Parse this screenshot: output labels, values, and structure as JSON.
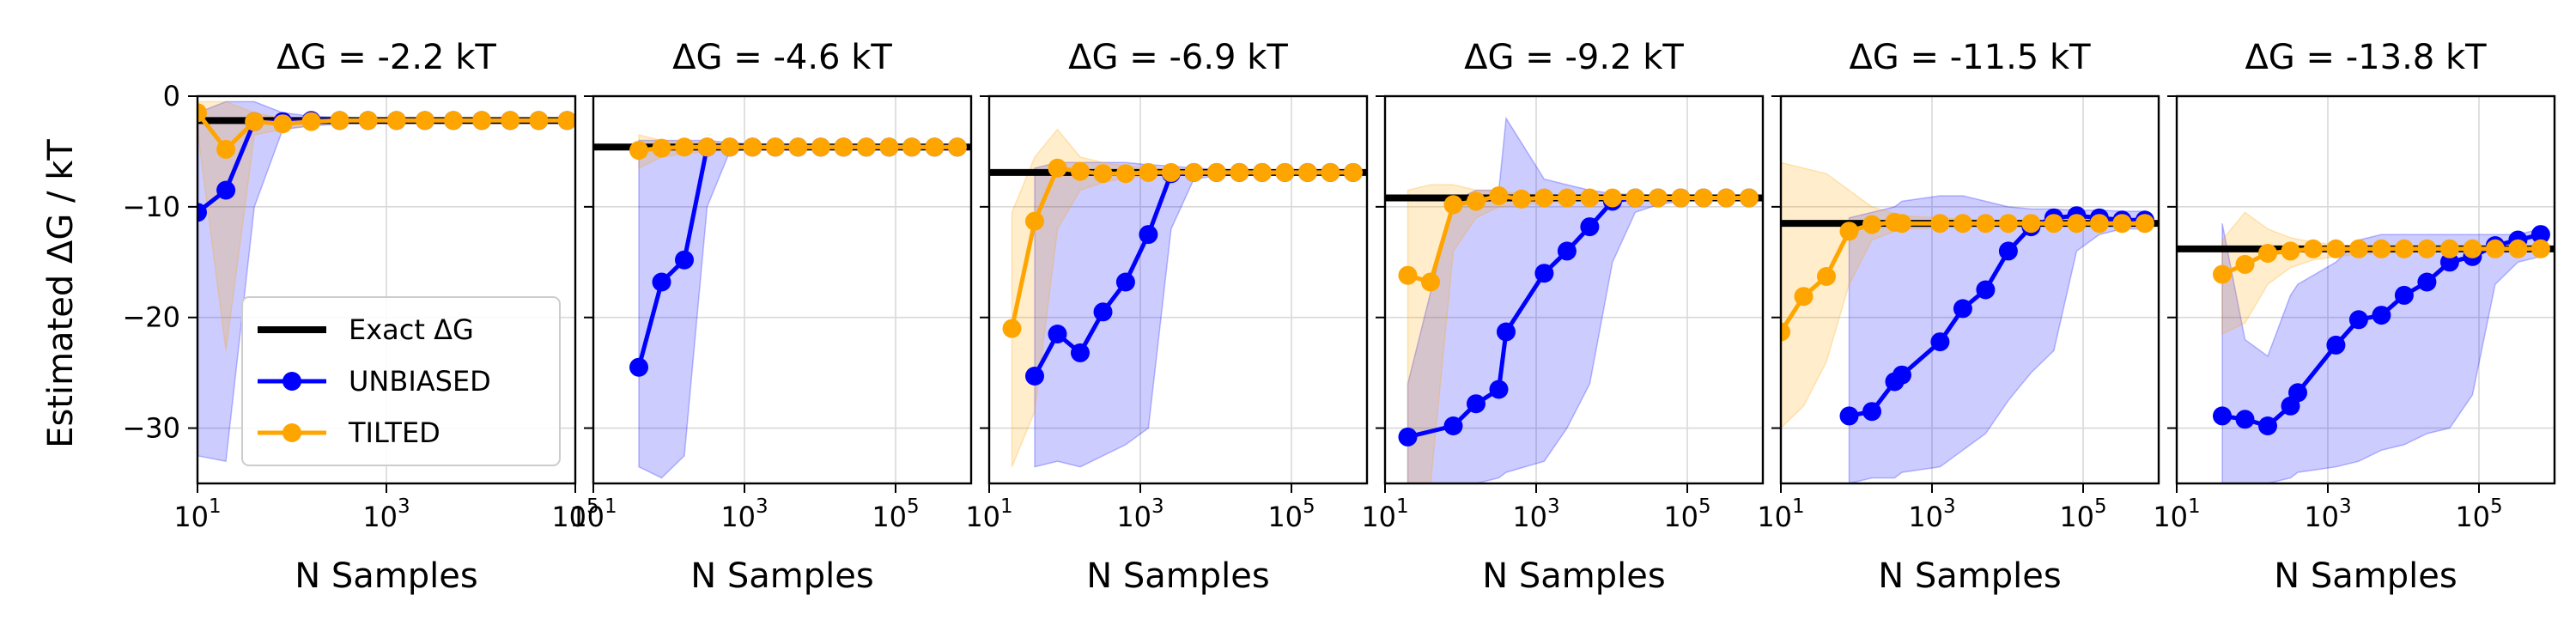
{
  "figure": {
    "ylabel": "Estimated ΔG / kT",
    "legend": {
      "position": "lower-left",
      "entries": [
        {
          "label": "Exact ΔG",
          "style": "line",
          "color": "#000000"
        },
        {
          "label": "UNBIASED",
          "style": "line-marker",
          "color": "#0000ff"
        },
        {
          "label": "TILTED",
          "style": "line-marker",
          "color": "#ffa500"
        }
      ]
    },
    "y_ticks": [
      0,
      -10,
      -20,
      -30
    ],
    "y_tick_labels": [
      "0",
      "−10",
      "−20",
      "−30"
    ],
    "x_tick_bases": [
      "10",
      "10",
      "10"
    ],
    "x_tick_exponents": [
      "1",
      "3",
      "5"
    ]
  },
  "chart_data": [
    {
      "type": "line",
      "title": "ΔG = -2.2 kT",
      "xlabel": "N Samples",
      "ylabel": "Estimated ΔG / kT",
      "x_scale": "log",
      "xlim": [
        10,
        100000
      ],
      "ylim": [
        -35,
        0
      ],
      "exact": -2.2,
      "grid": true,
      "series": [
        {
          "name": "UNBIASED",
          "color": "#0000ff",
          "x": [
            10,
            20,
            40,
            80,
            160,
            320,
            640,
            1280,
            2560,
            5120,
            10240,
            20480,
            40960,
            81920
          ],
          "y": [
            -10.5,
            -8.5,
            -2.3,
            -2.3,
            -2.2,
            -2.2,
            -2.2,
            -2.2,
            -2.2,
            -2.2,
            -2.2,
            -2.2,
            -2.2,
            -2.2
          ],
          "band_low": [
            -32.5,
            -33.0,
            -10.0,
            -3.0,
            -2.7,
            -2.5,
            -2.4,
            -2.3,
            -2.3,
            -2.3,
            -2.3,
            -2.3,
            -2.3,
            -2.3
          ],
          "band_high": [
            -1.5,
            -0.5,
            -0.5,
            -1.5,
            -1.8,
            -1.9,
            -2.0,
            -2.0,
            -2.1,
            -2.1,
            -2.1,
            -2.1,
            -2.1,
            -2.1
          ]
        },
        {
          "name": "TILTED",
          "color": "#ffa500",
          "x": [
            10,
            20,
            40,
            80,
            160,
            320,
            640,
            1280,
            2560,
            5120,
            10240,
            20480,
            40960,
            81920
          ],
          "y": [
            -1.5,
            -4.8,
            -2.3,
            -2.5,
            -2.3,
            -2.2,
            -2.2,
            -2.2,
            -2.2,
            -2.2,
            -2.2,
            -2.2,
            -2.2,
            -2.2
          ],
          "band_low": [
            -3.0,
            -23.0,
            -3.5,
            -3.0,
            -2.6,
            -2.4,
            -2.3,
            -2.3,
            -2.3,
            -2.3,
            -2.3,
            -2.3,
            -2.3,
            -2.3
          ],
          "band_high": [
            -0.5,
            -0.5,
            -1.5,
            -2.0,
            -2.0,
            -2.0,
            -2.1,
            -2.1,
            -2.1,
            -2.1,
            -2.1,
            -2.1,
            -2.1,
            -2.1
          ]
        }
      ]
    },
    {
      "type": "line",
      "title": "ΔG = -4.6 kT",
      "xlabel": "N Samples",
      "ylabel": "",
      "x_scale": "log",
      "xlim": [
        10,
        1000000
      ],
      "ylim": [
        -35,
        0
      ],
      "exact": -4.6,
      "grid": true,
      "series": [
        {
          "name": "UNBIASED",
          "color": "#0000ff",
          "x": [
            40,
            80,
            160,
            320,
            640,
            1280,
            2560,
            5120,
            10240,
            20480,
            40960,
            81920,
            163840,
            327680,
            655360
          ],
          "y": [
            -24.5,
            -16.8,
            -14.8,
            -4.6,
            -4.6,
            -4.6,
            -4.6,
            -4.6,
            -4.6,
            -4.6,
            -4.6,
            -4.6,
            -4.6,
            -4.6,
            -4.6
          ],
          "band_low": [
            -33.5,
            -34.5,
            -32.5,
            -10.0,
            -5.0,
            -4.8,
            -4.7,
            -4.7,
            -4.7,
            -4.7,
            -4.7,
            -4.7,
            -4.7,
            -4.7,
            -4.7
          ],
          "band_high": [
            -4.0,
            -4.0,
            -4.0,
            -4.0,
            -4.2,
            -4.3,
            -4.4,
            -4.4,
            -4.5,
            -4.5,
            -4.5,
            -4.5,
            -4.5,
            -4.5,
            -4.5
          ]
        },
        {
          "name": "TILTED",
          "color": "#ffa500",
          "x": [
            40,
            80,
            160,
            320,
            640,
            1280,
            2560,
            5120,
            10240,
            20480,
            40960,
            81920,
            163840,
            327680,
            655360
          ],
          "y": [
            -4.9,
            -4.7,
            -4.6,
            -4.6,
            -4.6,
            -4.6,
            -4.6,
            -4.6,
            -4.6,
            -4.6,
            -4.6,
            -4.6,
            -4.6,
            -4.6,
            -4.6
          ],
          "band_low": [
            -6.5,
            -5.5,
            -5.2,
            -5.0,
            -4.9,
            -4.8,
            -4.7,
            -4.7,
            -4.7,
            -4.7,
            -4.7,
            -4.7,
            -4.7,
            -4.7,
            -4.7
          ],
          "band_high": [
            -3.5,
            -4.0,
            -4.1,
            -4.2,
            -4.3,
            -4.4,
            -4.4,
            -4.5,
            -4.5,
            -4.5,
            -4.5,
            -4.5,
            -4.5,
            -4.5,
            -4.5
          ]
        }
      ]
    },
    {
      "type": "line",
      "title": "ΔG = -6.9 kT",
      "xlabel": "N Samples",
      "ylabel": "",
      "x_scale": "log",
      "xlim": [
        10,
        1000000
      ],
      "ylim": [
        -35,
        0
      ],
      "exact": -6.9,
      "grid": true,
      "series": [
        {
          "name": "UNBIASED",
          "color": "#0000ff",
          "x": [
            40,
            80,
            160,
            320,
            640,
            1280,
            2560,
            5120,
            10240,
            20480,
            40960,
            81920,
            163840,
            327680,
            655360
          ],
          "y": [
            -25.3,
            -21.5,
            -23.2,
            -19.5,
            -16.8,
            -12.5,
            -7.0,
            -6.9,
            -6.9,
            -6.9,
            -6.9,
            -6.9,
            -6.9,
            -6.9,
            -6.9
          ],
          "band_low": [
            -33.5,
            -33.0,
            -33.5,
            -32.5,
            -31.5,
            -30.0,
            -12.0,
            -7.5,
            -7.2,
            -7.1,
            -7.0,
            -7.0,
            -7.0,
            -7.0,
            -7.0
          ],
          "band_high": [
            -6.5,
            -6.0,
            -6.0,
            -6.0,
            -6.0,
            -6.2,
            -6.3,
            -6.5,
            -6.6,
            -6.7,
            -6.7,
            -6.8,
            -6.8,
            -6.8,
            -6.8
          ]
        },
        {
          "name": "TILTED",
          "color": "#ffa500",
          "x": [
            20,
            40,
            80,
            160,
            320,
            640,
            1280,
            2560,
            5120,
            10240,
            20480,
            40960,
            81920,
            163840,
            327680,
            655360
          ],
          "y": [
            -21.0,
            -11.3,
            -6.5,
            -6.8,
            -7.0,
            -7.0,
            -6.9,
            -6.9,
            -6.9,
            -6.9,
            -6.9,
            -6.9,
            -6.9,
            -6.9,
            -6.9,
            -6.9
          ],
          "band_low": [
            -33.5,
            -28.5,
            -12.0,
            -8.5,
            -7.8,
            -7.4,
            -7.2,
            -7.1,
            -7.0,
            -7.0,
            -7.0,
            -7.0,
            -7.0,
            -7.0,
            -7.0,
            -7.0
          ],
          "band_high": [
            -10.5,
            -5.5,
            -3.0,
            -5.5,
            -6.0,
            -6.3,
            -6.5,
            -6.6,
            -6.7,
            -6.7,
            -6.8,
            -6.8,
            -6.8,
            -6.8,
            -6.8,
            -6.8
          ]
        }
      ]
    },
    {
      "type": "line",
      "title": "ΔG = -9.2 kT",
      "xlabel": "N Samples",
      "ylabel": "",
      "x_scale": "log",
      "xlim": [
        10,
        1000000
      ],
      "ylim": [
        -35,
        0
      ],
      "exact": -9.2,
      "grid": true,
      "series": [
        {
          "name": "UNBIASED",
          "color": "#0000ff",
          "x": [
            20,
            80,
            160,
            320,
            400,
            1280,
            2560,
            5120,
            10240,
            20480,
            40960,
            81920,
            163840,
            327680,
            655360
          ],
          "y": [
            -30.8,
            -29.8,
            -27.8,
            -26.5,
            -21.3,
            -16.0,
            -14.0,
            -11.8,
            -9.5,
            -9.2,
            -9.2,
            -9.2,
            -9.2,
            -9.2,
            -9.2
          ],
          "band_low": [
            -35.0,
            -35.0,
            -35.0,
            -34.5,
            -34.0,
            -33.0,
            -30.0,
            -26.0,
            -15.0,
            -10.5,
            -9.8,
            -9.5,
            -9.4,
            -9.3,
            -9.3
          ],
          "band_high": [
            -26.0,
            -9.5,
            -8.5,
            -8.5,
            -2.0,
            -7.5,
            -8.0,
            -8.5,
            -8.8,
            -8.9,
            -9.0,
            -9.0,
            -9.1,
            -9.1,
            -9.1
          ]
        },
        {
          "name": "TILTED",
          "color": "#ffa500",
          "x": [
            20,
            40,
            80,
            160,
            320,
            640,
            1280,
            2560,
            5120,
            10240,
            20480,
            40960,
            81920,
            163840,
            327680,
            655360
          ],
          "y": [
            -16.2,
            -16.8,
            -9.8,
            -9.5,
            -9.0,
            -9.3,
            -9.2,
            -9.2,
            -9.2,
            -9.2,
            -9.2,
            -9.2,
            -9.2,
            -9.2,
            -9.2,
            -9.2
          ],
          "band_low": [
            -35.0,
            -35.0,
            -14.0,
            -11.0,
            -10.0,
            -9.8,
            -9.6,
            -9.5,
            -9.4,
            -9.3,
            -9.3,
            -9.3,
            -9.3,
            -9.3,
            -9.3,
            -9.3
          ],
          "band_high": [
            -8.5,
            -8.0,
            -8.0,
            -8.5,
            -8.6,
            -8.8,
            -8.9,
            -9.0,
            -9.0,
            -9.1,
            -9.1,
            -9.1,
            -9.1,
            -9.1,
            -9.1,
            -9.1
          ]
        }
      ]
    },
    {
      "type": "line",
      "title": "ΔG = -11.5 kT",
      "xlabel": "N Samples",
      "ylabel": "",
      "x_scale": "log",
      "xlim": [
        10,
        1000000
      ],
      "ylim": [
        -35,
        0
      ],
      "exact": -11.5,
      "grid": true,
      "series": [
        {
          "name": "UNBIASED",
          "color": "#0000ff",
          "x": [
            80,
            160,
            320,
            400,
            1280,
            2560,
            5120,
            10240,
            20480,
            40960,
            81920,
            163840,
            327680,
            655360
          ],
          "y": [
            -28.9,
            -28.5,
            -25.8,
            -25.2,
            -22.2,
            -19.2,
            -17.5,
            -14.0,
            -11.8,
            -11.0,
            -10.8,
            -11.0,
            -11.2,
            -11.2
          ],
          "band_low": [
            -35.0,
            -34.5,
            -34.5,
            -34.0,
            -33.5,
            -32.0,
            -30.5,
            -27.5,
            -25.0,
            -23.0,
            -14.0,
            -12.5,
            -12.0,
            -12.0
          ],
          "band_high": [
            -11.0,
            -10.5,
            -10.0,
            -9.5,
            -9.0,
            -9.0,
            -9.5,
            -10.0,
            -10.2,
            -10.2,
            -10.3,
            -10.3,
            -10.4,
            -10.4
          ]
        },
        {
          "name": "TILTED",
          "color": "#ffa500",
          "x": [
            10,
            20,
            40,
            80,
            160,
            320,
            400,
            1280,
            2560,
            5120,
            10240,
            20480,
            40960,
            81920,
            163840,
            327680,
            655360
          ],
          "y": [
            -21.3,
            -18.1,
            -16.3,
            -12.2,
            -11.6,
            -11.4,
            -11.5,
            -11.5,
            -11.5,
            -11.5,
            -11.5,
            -11.5,
            -11.5,
            -11.5,
            -11.5,
            -11.5,
            -11.5
          ],
          "band_low": [
            -30.0,
            -28.0,
            -24.0,
            -17.0,
            -13.0,
            -12.2,
            -12.0,
            -11.9,
            -11.8,
            -11.8,
            -11.7,
            -11.7,
            -11.7,
            -11.7,
            -11.7,
            -11.7,
            -11.7
          ],
          "band_high": [
            -6.0,
            -6.5,
            -7.0,
            -8.5,
            -10.0,
            -10.6,
            -10.8,
            -11.0,
            -11.1,
            -11.2,
            -11.2,
            -11.3,
            -11.3,
            -11.3,
            -11.3,
            -11.3,
            -11.3
          ]
        }
      ]
    },
    {
      "type": "line",
      "title": "ΔG = -13.8 kT",
      "xlabel": "N Samples",
      "ylabel": "",
      "x_scale": "log",
      "xlim": [
        10,
        1000000
      ],
      "ylim": [
        -35,
        0
      ],
      "exact": -13.8,
      "grid": true,
      "series": [
        {
          "name": "UNBIASED",
          "color": "#0000ff",
          "x": [
            40,
            80,
            160,
            320,
            400,
            1280,
            2560,
            5120,
            10240,
            20480,
            40960,
            81920,
            163840,
            327680,
            655360
          ],
          "y": [
            -28.9,
            -29.2,
            -29.8,
            -28.0,
            -26.8,
            -22.5,
            -20.2,
            -19.8,
            -18.0,
            -16.8,
            -15.0,
            -14.5,
            -13.5,
            -13.0,
            -12.5
          ],
          "band_low": [
            -35.0,
            -35.0,
            -35.0,
            -34.5,
            -34.0,
            -33.5,
            -33.0,
            -32.0,
            -31.5,
            -30.5,
            -30.0,
            -27.0,
            -17.0,
            -15.0,
            -14.5
          ],
          "band_high": [
            -11.5,
            -22.0,
            -23.5,
            -18.0,
            -17.0,
            -15.0,
            -13.0,
            -12.5,
            -12.5,
            -12.5,
            -12.5,
            -12.5,
            -12.5,
            -12.5,
            -12.0
          ]
        },
        {
          "name": "TILTED",
          "color": "#ffa500",
          "x": [
            40,
            80,
            160,
            320,
            640,
            1280,
            2560,
            5120,
            10240,
            20480,
            40960,
            81920,
            163840,
            327680,
            655360
          ],
          "y": [
            -16.1,
            -15.2,
            -14.2,
            -14.0,
            -13.8,
            -13.8,
            -13.8,
            -13.8,
            -13.8,
            -13.8,
            -13.8,
            -13.8,
            -13.8,
            -13.8,
            -13.8
          ],
          "band_low": [
            -21.5,
            -20.5,
            -17.0,
            -15.5,
            -14.8,
            -14.5,
            -14.3,
            -14.2,
            -14.1,
            -14.0,
            -14.0,
            -14.0,
            -14.0,
            -14.0,
            -14.0
          ],
          "band_high": [
            -13.0,
            -10.5,
            -12.0,
            -12.8,
            -13.2,
            -13.4,
            -13.5,
            -13.6,
            -13.6,
            -13.7,
            -13.7,
            -13.7,
            -13.7,
            -13.7,
            -13.7
          ]
        }
      ]
    }
  ]
}
